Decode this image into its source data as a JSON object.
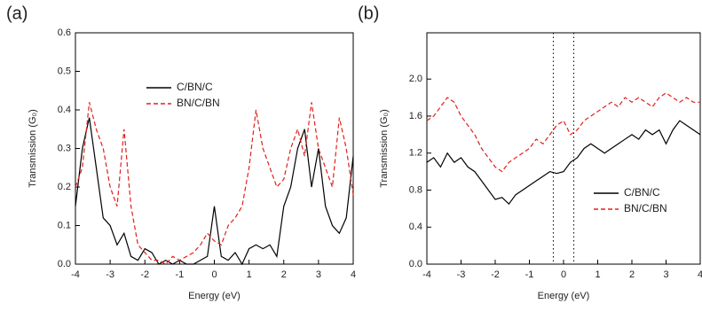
{
  "chart_data": [
    {
      "type": "line",
      "panel_label": "(a)",
      "xlabel": "Energy (eV)",
      "ylabel": "Transmission (G₀)",
      "xlim": [
        -4,
        4
      ],
      "xticks": [
        -4,
        -3,
        -2,
        -1,
        0,
        1,
        2,
        3,
        4
      ],
      "ylim": [
        0,
        0.6
      ],
      "yticks": [
        {
          "value": 0,
          "label": "0.0"
        },
        0.1,
        0.2,
        0.3,
        0.4,
        0.5,
        0.6
      ],
      "legend": "upper center",
      "x": [
        -4,
        -3.8,
        -3.6,
        -3.4,
        -3.2,
        -3,
        -2.8,
        -2.6,
        -2.4,
        -2.2,
        -2,
        -1.8,
        -1.6,
        -1.4,
        -1.2,
        -1,
        -0.8,
        -0.6,
        -0.4,
        -0.2,
        0,
        0.2,
        0.4,
        0.6,
        0.8,
        1,
        1.2,
        1.4,
        1.6,
        1.8,
        2,
        2.2,
        2.4,
        2.6,
        2.8,
        3,
        3.2,
        3.4,
        3.6,
        3.8,
        4
      ],
      "series": [
        {
          "name": "C/BN/C",
          "color": "#000000",
          "dash": false,
          "values": [
            0.15,
            0.3,
            0.38,
            0.25,
            0.12,
            0.1,
            0.05,
            0.08,
            0.02,
            0.01,
            0.04,
            0.03,
            0,
            0.01,
            0,
            0.01,
            0,
            0,
            0.01,
            0.02,
            0.15,
            0.02,
            0.01,
            0.03,
            0,
            0.04,
            0.05,
            0.04,
            0.05,
            0.02,
            0.15,
            0.2,
            0.3,
            0.35,
            0.2,
            0.3,
            0.15,
            0.1,
            0.08,
            0.12,
            0.28
          ]
        },
        {
          "name": "BN/C/BN",
          "color": "#e0201b",
          "dash": true,
          "values": [
            0.2,
            0.25,
            0.42,
            0.35,
            0.3,
            0.2,
            0.15,
            0.35,
            0.15,
            0.05,
            0.03,
            0.01,
            0.01,
            0,
            0.02,
            0.01,
            0.02,
            0.03,
            0.05,
            0.08,
            0.06,
            0.05,
            0.1,
            0.12,
            0.15,
            0.25,
            0.4,
            0.3,
            0.25,
            0.2,
            0.22,
            0.3,
            0.35,
            0.28,
            0.42,
            0.3,
            0.25,
            0.2,
            0.38,
            0.3,
            0.18
          ]
        }
      ]
    },
    {
      "type": "line",
      "panel_label": "(b)",
      "xlabel": "Energy (eV)",
      "ylabel": "Transmission (G₀)",
      "xlim": [
        -4,
        4
      ],
      "xticks": [
        -4,
        -3,
        -2,
        -1,
        0,
        1,
        2,
        3,
        4
      ],
      "ylim": [
        0,
        2.5
      ],
      "yticks": [
        {
          "value": 0,
          "label": "0.0"
        },
        0.4,
        0.8,
        1.2,
        1.6,
        {
          "value": 2,
          "label": "2.0"
        }
      ],
      "legend": "lower right",
      "vlines": [
        -0.3,
        0.3
      ],
      "x": [
        -4,
        -3.8,
        -3.6,
        -3.4,
        -3.2,
        -3,
        -2.8,
        -2.6,
        -2.4,
        -2.2,
        -2,
        -1.8,
        -1.6,
        -1.4,
        -1.2,
        -1,
        -0.8,
        -0.6,
        -0.4,
        -0.2,
        0,
        0.2,
        0.4,
        0.6,
        0.8,
        1,
        1.2,
        1.4,
        1.6,
        1.8,
        2,
        2.2,
        2.4,
        2.6,
        2.8,
        3,
        3.2,
        3.4,
        3.6,
        3.8,
        4
      ],
      "series": [
        {
          "name": "C/BN/C",
          "color": "#000000",
          "dash": false,
          "values": [
            1.1,
            1.15,
            1.05,
            1.2,
            1.1,
            1.15,
            1.05,
            1,
            0.9,
            0.8,
            0.7,
            0.72,
            0.65,
            0.75,
            0.8,
            0.85,
            0.9,
            0.95,
            1,
            0.98,
            1,
            1.1,
            1.15,
            1.25,
            1.3,
            1.25,
            1.2,
            1.25,
            1.3,
            1.35,
            1.4,
            1.35,
            1.45,
            1.4,
            1.45,
            1.3,
            1.45,
            1.55,
            1.5,
            1.45,
            1.4
          ]
        },
        {
          "name": "BN/C/BN",
          "color": "#e0201b",
          "dash": true,
          "values": [
            1.55,
            1.6,
            1.7,
            1.8,
            1.75,
            1.6,
            1.5,
            1.4,
            1.25,
            1.15,
            1.05,
            1,
            1.1,
            1.15,
            1.2,
            1.25,
            1.35,
            1.3,
            1.4,
            1.5,
            1.55,
            1.4,
            1.45,
            1.55,
            1.6,
            1.65,
            1.7,
            1.75,
            1.7,
            1.8,
            1.75,
            1.8,
            1.75,
            1.7,
            1.8,
            1.85,
            1.8,
            1.75,
            1.8,
            1.75,
            1.75
          ]
        }
      ]
    }
  ]
}
